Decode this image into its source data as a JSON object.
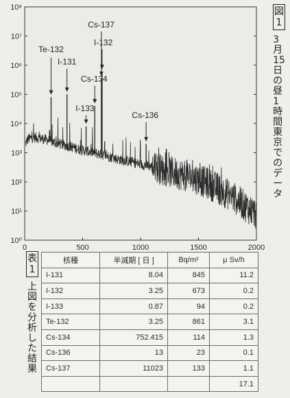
{
  "chart_data": {
    "type": "line",
    "title": "",
    "xlabel": "",
    "ylabel": "",
    "xlim": [
      0,
      2000
    ],
    "ylim": [
      1,
      100000000
    ],
    "y_scale": "log",
    "x_ticks": [
      "0",
      "500",
      "1000",
      "1500",
      "2000"
    ],
    "y_ticks": [
      "10⁰",
      "10¹",
      "10²",
      "10³",
      "10⁴",
      "10⁵",
      "10⁶",
      "10⁷",
      "10⁸"
    ],
    "grid": false,
    "baseline": {
      "x": [
        5,
        30,
        60,
        100,
        150,
        190,
        220,
        260,
        300,
        400,
        500,
        600,
        700,
        800,
        900,
        1000,
        1100,
        1200,
        1300,
        1400,
        1500,
        1600,
        1700,
        1800,
        1900,
        2000
      ],
      "y": [
        2000,
        3000,
        3200,
        3300,
        3000,
        2800,
        2500,
        2200,
        2000,
        1600,
        1200,
        1000,
        800,
        600,
        500,
        400,
        330,
        250,
        200,
        160,
        120,
        80,
        50,
        30,
        15,
        8
      ]
    },
    "peaks": [
      {
        "label": "Te-132",
        "x": 228,
        "y": 80000
      },
      {
        "label": "I-131",
        "x": 365,
        "y": 100000
      },
      {
        "label": "I-133",
        "x": 530,
        "y": 8000
      },
      {
        "label": "Cs-134",
        "x": 605,
        "y": 40000
      },
      {
        "label": "I-132",
        "x": 668,
        "y": 600000
      },
      {
        "label": "Cs-137",
        "x": 662,
        "y": 350000
      },
      {
        "label": "Cs-136",
        "x": 1048,
        "y": 2000
      }
    ],
    "annotations": [
      "Te-132",
      "I-131",
      "Cs-137",
      "I-132",
      "Cs-134",
      "I-133",
      "Cs-136"
    ]
  },
  "figure_caption": {
    "tag": [
      "図",
      "1"
    ],
    "text": [
      "3",
      "月",
      "15",
      "日",
      "の",
      "昼",
      "1",
      "時",
      "間",
      "東",
      "京",
      "で",
      "の",
      "デ",
      "ー",
      "タ"
    ]
  },
  "table_caption": {
    "tag": [
      "表",
      "1"
    ],
    "text": [
      "上",
      "図",
      "を",
      "分",
      "析",
      "し",
      "た",
      "結",
      "果"
    ]
  },
  "table": {
    "headers": [
      "核種",
      "半減期 [ 日 ]",
      "Bq/m²",
      "μ Sv/h"
    ],
    "rows": [
      [
        "I-131",
        "8.04",
        "845",
        "11.2"
      ],
      [
        "I-132",
        "3.25",
        "673",
        "0.2"
      ],
      [
        "I-133",
        "0.87",
        "94",
        "0.2"
      ],
      [
        "Te-132",
        "3.25",
        "861",
        "3.1"
      ],
      [
        "Cs-134",
        "752.415",
        "114",
        "1.3"
      ],
      [
        "Cs-136",
        "13",
        "23",
        "0.1"
      ],
      [
        "Cs-137",
        "11023",
        "133",
        "1.1"
      ],
      [
        "",
        "",
        "",
        "17.1"
      ]
    ]
  }
}
